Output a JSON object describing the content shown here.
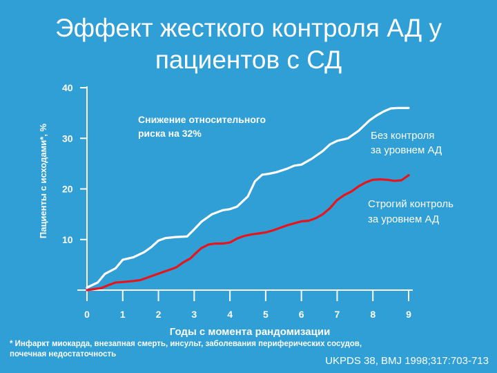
{
  "slide": {
    "title_line1": "Эффект жесткого контроля АД у",
    "title_line2": "пациентов с СД",
    "footnote_line1": "* Инфаркт миокарда, внезапная смерть, инсульт, заболевания периферических сосудов,",
    "footnote_line2": "почечная недостаточность",
    "citation": "UKPDS 38, BMJ 1998;317:703-713",
    "colors": {
      "background": "#2f9fd6",
      "text": "#ffffff",
      "tight_control": "#e8141c",
      "no_control": "#ffffff"
    }
  },
  "chart_data": {
    "type": "line",
    "title": "",
    "xlabel": "Годы с момента рандомизации",
    "ylabel": "Пациенты с исходами*, %",
    "xlim": [
      0,
      9
    ],
    "ylim": [
      0,
      40
    ],
    "xticks": [
      "0",
      "1",
      "2",
      "3",
      "4",
      "5",
      "6",
      "7",
      "8",
      "9"
    ],
    "yticks": [
      "10",
      "20",
      "30",
      "40"
    ],
    "annotation": {
      "line1": "Снижение относительного",
      "line2": "риска на 32%"
    },
    "series": [
      {
        "name": "Без контроля за уровнем АД",
        "label_line1": "Без контроля",
        "label_line2": "за уровнем АД",
        "color": "#ffffff",
        "x": [
          0.0,
          0.3,
          0.5,
          0.8,
          1.0,
          1.3,
          1.6,
          1.8,
          2.0,
          2.2,
          2.5,
          2.8,
          3.0,
          3.2,
          3.5,
          3.8,
          4.0,
          4.2,
          4.5,
          4.7,
          4.9,
          5.1,
          5.3,
          5.6,
          5.8,
          6.0,
          6.3,
          6.6,
          6.8,
          7.0,
          7.3,
          7.6,
          7.9,
          8.1,
          8.3,
          8.5,
          8.7,
          9.0
        ],
        "y": [
          0.5,
          1.5,
          3.2,
          4.3,
          6.0,
          6.5,
          7.5,
          8.5,
          9.8,
          10.3,
          10.5,
          10.6,
          12.0,
          13.5,
          15.0,
          15.8,
          16.0,
          16.5,
          18.5,
          21.5,
          22.8,
          23.0,
          23.3,
          24.0,
          24.6,
          24.8,
          26.0,
          27.5,
          28.8,
          29.5,
          30.0,
          31.5,
          33.5,
          34.5,
          35.3,
          35.9,
          36.0,
          36.0
        ]
      },
      {
        "name": "Строгий контроль за уровнем АД",
        "label_line1": "Строгий контроль",
        "label_line2": "за уровнем АД",
        "color": "#e8141c",
        "x": [
          0.0,
          0.2,
          0.4,
          0.6,
          0.8,
          1.0,
          1.3,
          1.5,
          1.7,
          1.9,
          2.1,
          2.3,
          2.5,
          2.7,
          2.9,
          3.0,
          3.2,
          3.4,
          3.6,
          3.8,
          4.0,
          4.2,
          4.4,
          4.6,
          4.8,
          5.0,
          5.2,
          5.4,
          5.6,
          5.8,
          6.0,
          6.2,
          6.4,
          6.6,
          6.8,
          7.0,
          7.2,
          7.4,
          7.6,
          7.8,
          8.0,
          8.2,
          8.4,
          8.6,
          8.8,
          9.0
        ],
        "y": [
          0.0,
          0.2,
          0.4,
          1.0,
          1.5,
          1.6,
          1.8,
          2.0,
          2.5,
          3.0,
          3.5,
          4.0,
          4.5,
          5.5,
          6.3,
          7.0,
          8.3,
          9.0,
          9.2,
          9.2,
          9.4,
          10.2,
          10.7,
          11.0,
          11.2,
          11.4,
          11.8,
          12.3,
          12.8,
          13.2,
          13.6,
          13.7,
          14.2,
          15.0,
          16.2,
          17.8,
          18.8,
          19.5,
          20.5,
          21.3,
          21.8,
          21.9,
          21.8,
          21.6,
          21.7,
          22.7
        ]
      }
    ]
  }
}
